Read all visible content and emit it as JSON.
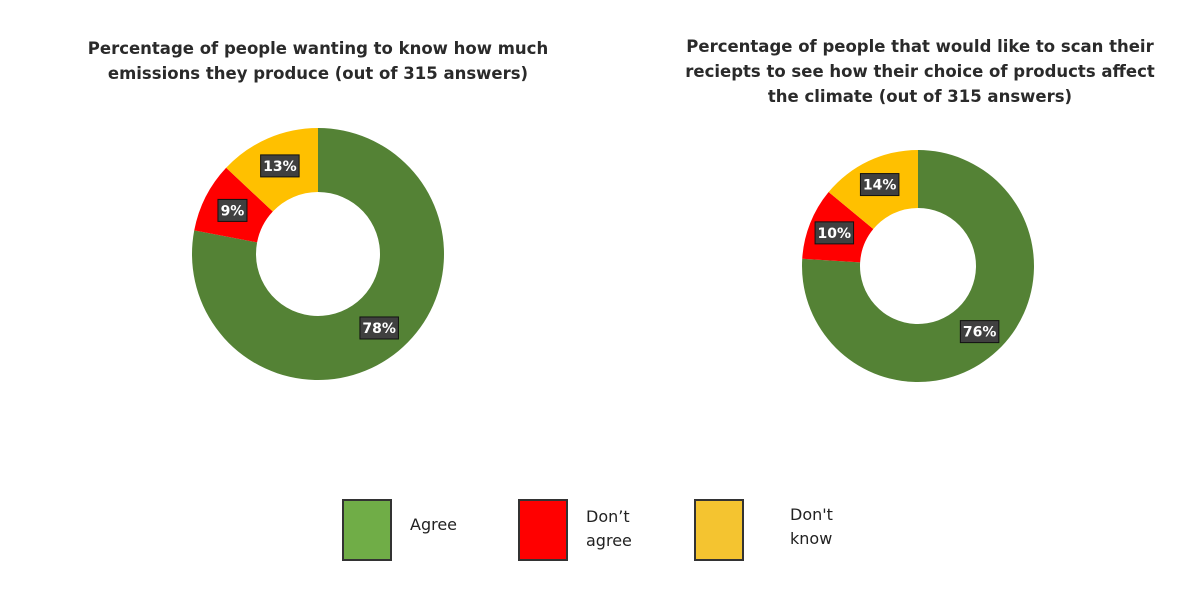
{
  "chart_data": [
    {
      "type": "pie",
      "title": "Percentage of people wanting to know how much emissions they produce (out of 315 answers)",
      "categories": [
        "Agree",
        "Don’t agree",
        "Don't know"
      ],
      "values": [
        78,
        9,
        13
      ],
      "labels": [
        "78%",
        "9%",
        "13%"
      ]
    },
    {
      "type": "pie",
      "title": "Percentage of people that would like to scan their reciepts to see how their choice of products affect the climate (out of 315 answers)",
      "categories": [
        "Agree",
        "Don’t agree",
        "Don't know"
      ],
      "values": [
        76,
        10,
        14
      ],
      "labels": [
        "76%",
        "10%",
        "14%"
      ]
    }
  ],
  "colors": [
    "#548235",
    "#ff0000",
    "#ffc000"
  ],
  "legend": {
    "colors": [
      "#70ad47",
      "#ff0000",
      "#f4c430"
    ],
    "items": [
      {
        "line1": "Agree",
        "line2": ""
      },
      {
        "line1": "Don’t",
        "line2": "agree"
      },
      {
        "line1": "Don't",
        "line2": "know"
      }
    ]
  }
}
